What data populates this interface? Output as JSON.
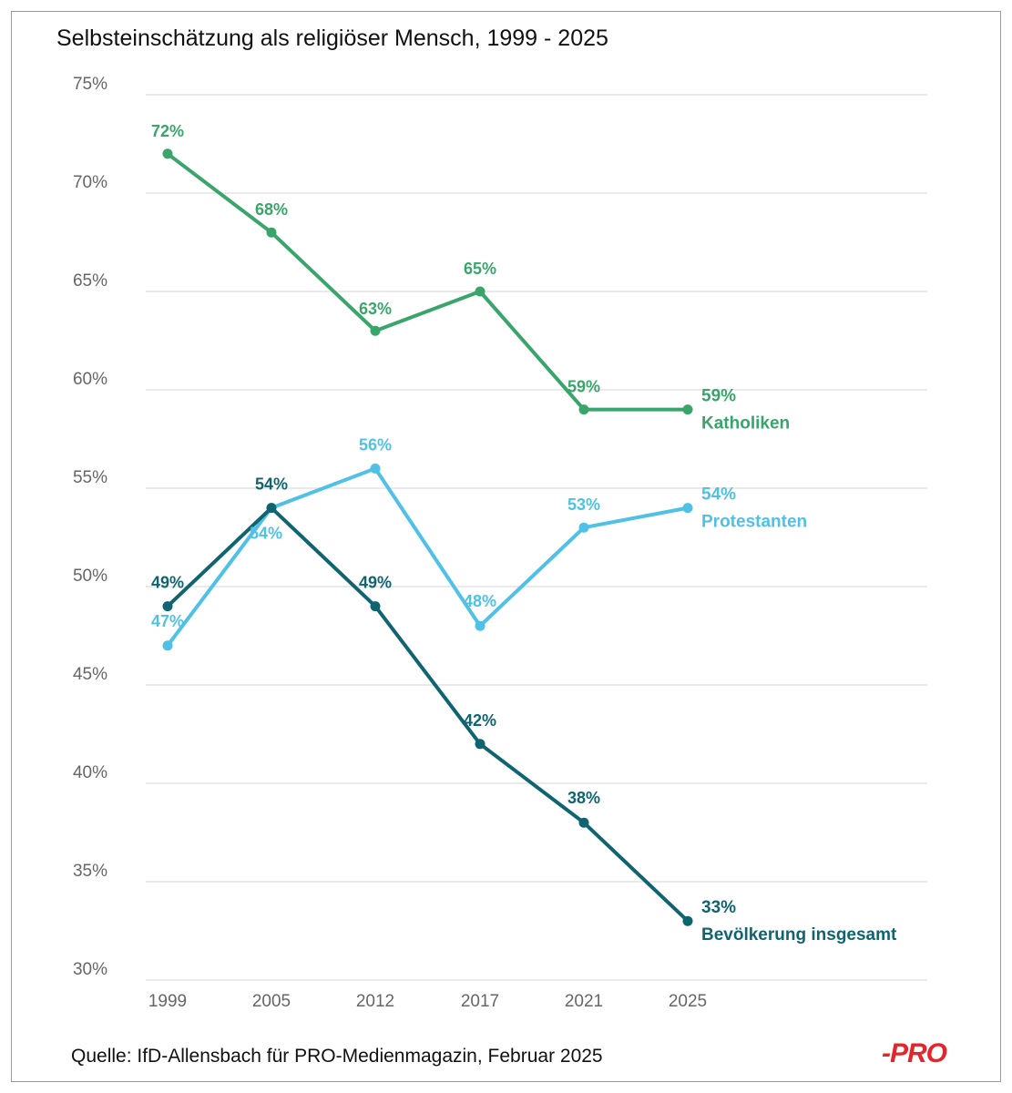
{
  "chart_data": {
    "type": "line",
    "title": "Selbsteinschätzung als religiöser Mensch, 1999 - 2025",
    "source": "Quelle: IfD-Allensbach für PRO-Medienmagazin, Februar 2025",
    "logo_text": "-PRO",
    "x": [
      "1999",
      "2005",
      "2012",
      "2017",
      "2021",
      "2025"
    ],
    "y_ticks": [
      "30%",
      "35%",
      "40%",
      "45%",
      "50%",
      "55%",
      "60%",
      "65%",
      "70%",
      "75%"
    ],
    "ylim": [
      30,
      75
    ],
    "grid": true,
    "series": [
      {
        "name": "Katholiken",
        "color": "#3aa56b",
        "values": [
          72,
          68,
          63,
          65,
          59,
          59
        ],
        "labels": [
          "72%",
          "68%",
          "63%",
          "65%",
          "59%",
          "59%"
        ]
      },
      {
        "name": "Protestanten",
        "color": "#4fc1e6",
        "values": [
          47,
          54,
          56,
          48,
          53,
          54
        ],
        "labels": [
          "47%",
          "54%",
          "56%",
          "48%",
          "53%",
          "54%"
        ]
      },
      {
        "name": "Bevölkerung insgesamt",
        "color": "#0f6470",
        "values": [
          49,
          54,
          49,
          42,
          38,
          33
        ],
        "labels": [
          "49%",
          "54%",
          "49%",
          "42%",
          "38%",
          "33%"
        ]
      }
    ]
  }
}
